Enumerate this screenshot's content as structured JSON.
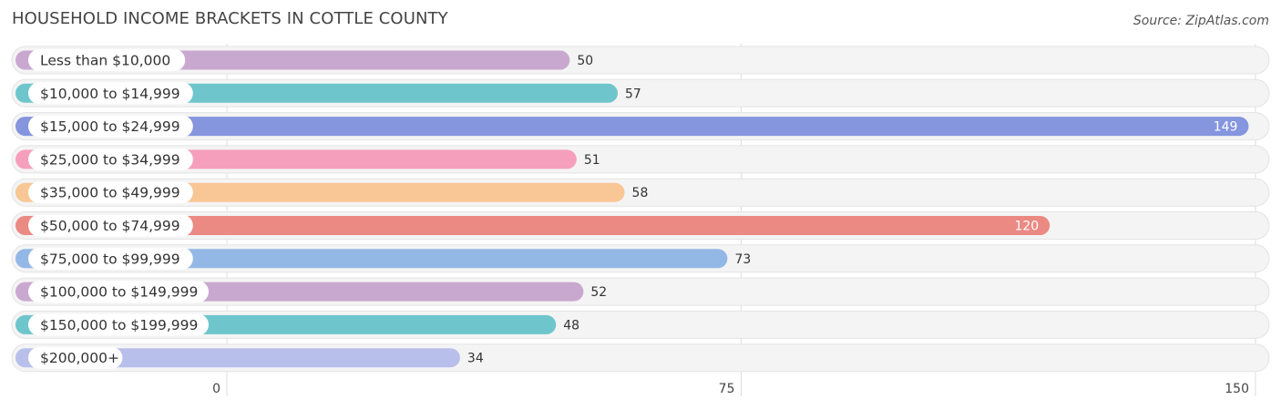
{
  "header": {
    "title": "HOUSEHOLD INCOME BRACKETS IN COTTLE COUNTY",
    "source": "Source: ZipAtlas.com"
  },
  "chart_data": {
    "type": "bar",
    "orientation": "horizontal",
    "title": "HOUSEHOLD INCOME BRACKETS IN COTTLE COUNTY",
    "categories": [
      "Less than $10,000",
      "$10,000 to $14,999",
      "$15,000 to $24,999",
      "$25,000 to $34,999",
      "$35,000 to $49,999",
      "$50,000 to $74,999",
      "$75,000 to $99,999",
      "$100,000 to $149,999",
      "$150,000 to $199,999",
      "$200,000+"
    ],
    "values": [
      50,
      57,
      149,
      51,
      58,
      120,
      73,
      52,
      48,
      34
    ],
    "colors": [
      "#c9a8d0",
      "#6ec6cc",
      "#8595de",
      "#f59fbd",
      "#f9c695",
      "#eb8983",
      "#93b8e5",
      "#c9a8d0",
      "#6ec6cc",
      "#b8bfea"
    ],
    "xlim": [
      0,
      150
    ],
    "xticks": [
      0,
      75,
      150
    ],
    "grid": true
  }
}
